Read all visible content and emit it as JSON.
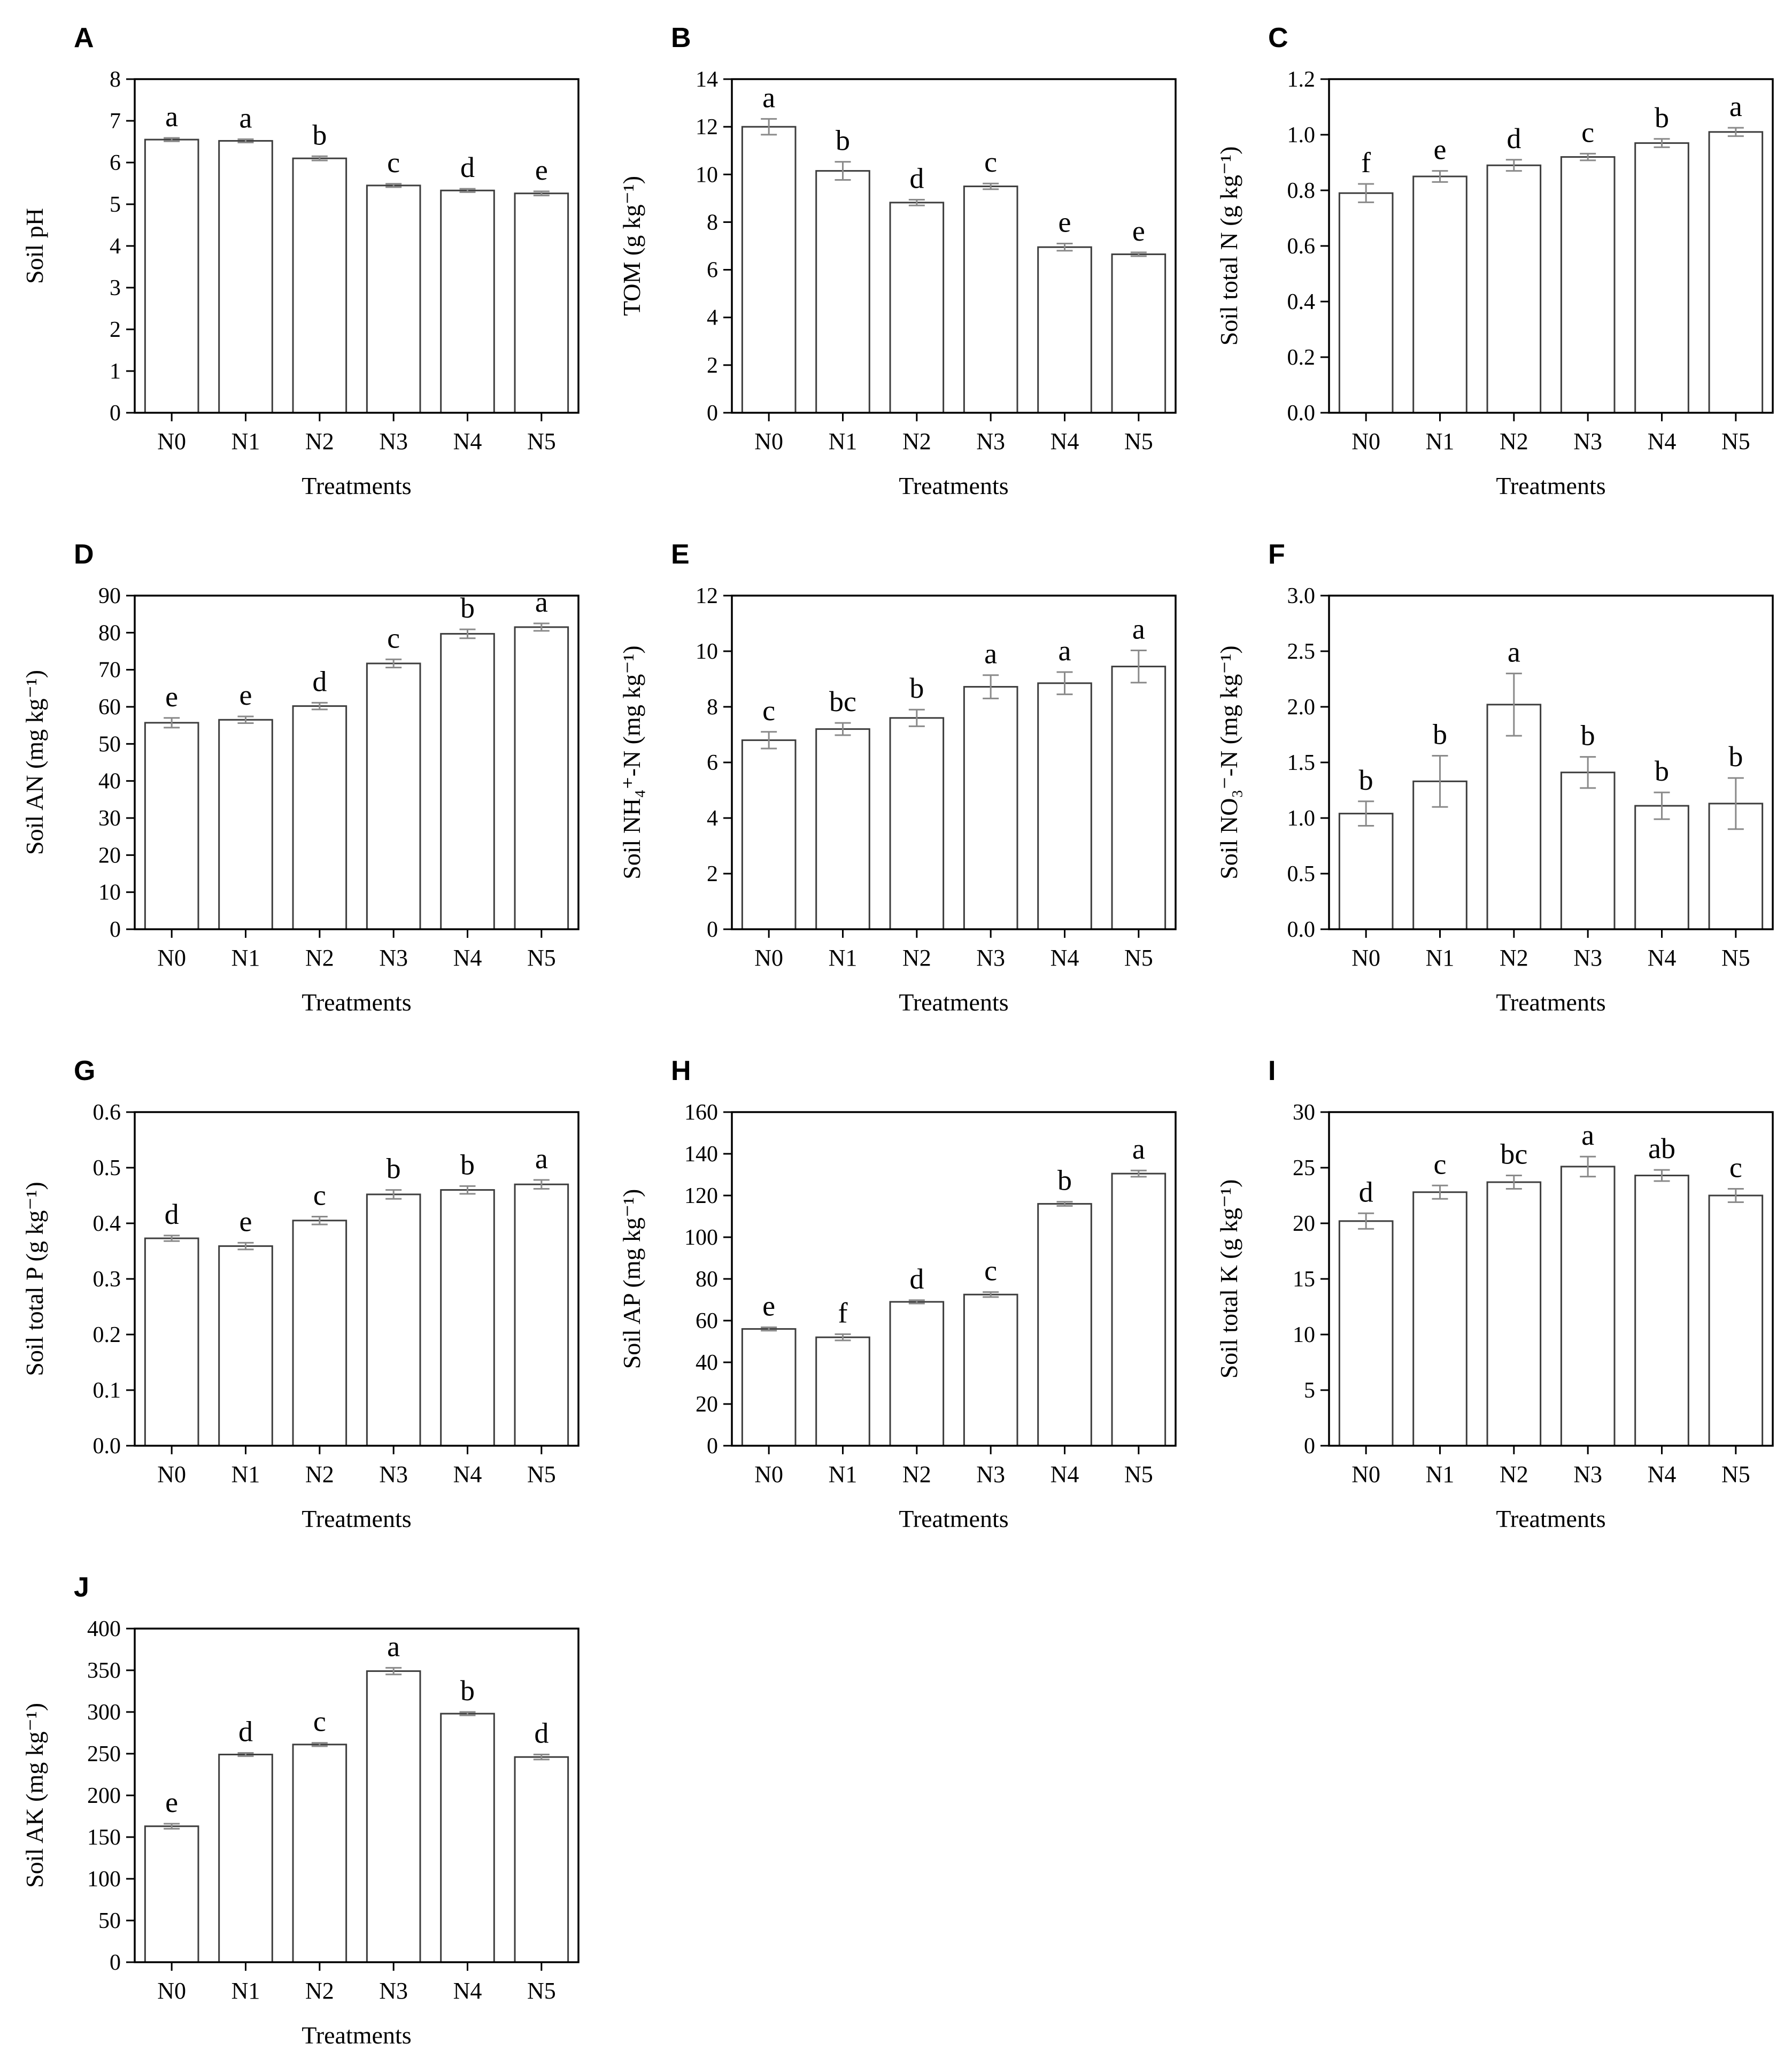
{
  "figure": {
    "panels_per_row": 3,
    "colors": {
      "background": "#ffffff",
      "bar_fill": "#ffffff",
      "bar_stroke": "#3d3d3d",
      "error_bar": "#8a8a8a",
      "axis": "#000000",
      "text": "#000000"
    }
  },
  "chart_data": [
    {
      "panel": "A",
      "type": "bar",
      "ylabel": "Soil pH",
      "xlabel": "Treatments",
      "categories": [
        "N0",
        "N1",
        "N2",
        "N3",
        "N4",
        "N5"
      ],
      "values": [
        6.55,
        6.52,
        6.1,
        5.45,
        5.33,
        5.26
      ],
      "errors": [
        0.04,
        0.04,
        0.05,
        0.04,
        0.04,
        0.05
      ],
      "sig_letters": [
        "a",
        "a",
        "b",
        "c",
        "d",
        "e"
      ],
      "ylim": [
        0,
        8
      ],
      "yticks": [
        "0",
        "1",
        "2",
        "3",
        "4",
        "5",
        "6",
        "7",
        "8"
      ],
      "legend": "none",
      "grid": "off"
    },
    {
      "panel": "B",
      "type": "bar",
      "ylabel": "TOM (g kg⁻¹)",
      "xlabel": "Treatments",
      "categories": [
        "N0",
        "N1",
        "N2",
        "N3",
        "N4",
        "N5"
      ],
      "values": [
        12.0,
        10.15,
        8.82,
        9.5,
        6.95,
        6.65
      ],
      "errors": [
        0.33,
        0.38,
        0.12,
        0.12,
        0.15,
        0.08
      ],
      "sig_letters": [
        "a",
        "b",
        "d",
        "c",
        "e",
        "e"
      ],
      "ylim": [
        0,
        14
      ],
      "yticks": [
        "0",
        "2",
        "4",
        "6",
        "8",
        "10",
        "12",
        "14"
      ],
      "legend": "none",
      "grid": "off"
    },
    {
      "panel": "C",
      "type": "bar",
      "ylabel": "Soil total N (g kg⁻¹)",
      "xlabel": "Treatments",
      "categories": [
        "N0",
        "N1",
        "N2",
        "N3",
        "N4",
        "N5"
      ],
      "values": [
        0.79,
        0.85,
        0.89,
        0.92,
        0.97,
        1.01
      ],
      "errors": [
        0.033,
        0.02,
        0.02,
        0.012,
        0.015,
        0.015
      ],
      "sig_letters": [
        "f",
        "e",
        "d",
        "c",
        "b",
        "a"
      ],
      "ylim": [
        0,
        1.2
      ],
      "yticks": [
        "0.0",
        "0.2",
        "0.4",
        "0.6",
        "0.8",
        "1.0",
        "1.2"
      ],
      "legend": "none",
      "grid": "off"
    },
    {
      "panel": "D",
      "type": "bar",
      "ylabel": "Soil AN (mg kg⁻¹)",
      "xlabel": "Treatments",
      "categories": [
        "N0",
        "N1",
        "N2",
        "N3",
        "N4",
        "N5"
      ],
      "values": [
        55.7,
        56.5,
        60.2,
        71.7,
        79.7,
        81.5
      ],
      "errors": [
        1.3,
        0.9,
        0.9,
        1.1,
        1.2,
        1.0
      ],
      "sig_letters": [
        "e",
        "e",
        "d",
        "c",
        "b",
        "a"
      ],
      "ylim": [
        0,
        90
      ],
      "yticks": [
        "0",
        "10",
        "20",
        "30",
        "40",
        "50",
        "60",
        "70",
        "80",
        "90"
      ],
      "legend": "none",
      "grid": "off"
    },
    {
      "panel": "E",
      "type": "bar",
      "ylabel": "Soil NH₄⁺-N (mg kg⁻¹)",
      "xlabel": "Treatments",
      "categories": [
        "N0",
        "N1",
        "N2",
        "N3",
        "N4",
        "N5"
      ],
      "values": [
        6.8,
        7.2,
        7.6,
        8.72,
        8.85,
        9.45
      ],
      "errors": [
        0.3,
        0.22,
        0.3,
        0.42,
        0.4,
        0.58
      ],
      "sig_letters": [
        "c",
        "bc",
        "b",
        "a",
        "a",
        "a"
      ],
      "ylim": [
        0,
        12
      ],
      "yticks": [
        "0",
        "2",
        "4",
        "6",
        "8",
        "10",
        "12"
      ],
      "legend": "none",
      "grid": "off"
    },
    {
      "panel": "F",
      "type": "bar",
      "ylabel": "Soil NO₃⁻-N (mg kg⁻¹)",
      "xlabel": "Treatments",
      "categories": [
        "N0",
        "N1",
        "N2",
        "N3",
        "N4",
        "N5"
      ],
      "values": [
        1.04,
        1.33,
        2.02,
        1.41,
        1.11,
        1.13
      ],
      "errors": [
        0.11,
        0.23,
        0.28,
        0.14,
        0.12,
        0.23
      ],
      "sig_letters": [
        "b",
        "b",
        "a",
        "b",
        "b",
        "b"
      ],
      "ylim": [
        0,
        3
      ],
      "yticks": [
        "0.0",
        "0.5",
        "1.0",
        "1.5",
        "2.0",
        "2.5",
        "3.0"
      ],
      "legend": "none",
      "grid": "off"
    },
    {
      "panel": "G",
      "type": "bar",
      "ylabel": "Soil total P (g kg⁻¹)",
      "xlabel": "Treatments",
      "categories": [
        "N0",
        "N1",
        "N2",
        "N3",
        "N4",
        "N5"
      ],
      "values": [
        0.373,
        0.359,
        0.405,
        0.452,
        0.46,
        0.47
      ],
      "errors": [
        0.005,
        0.006,
        0.007,
        0.008,
        0.007,
        0.008
      ],
      "sig_letters": [
        "d",
        "e",
        "c",
        "b",
        "b",
        "a"
      ],
      "ylim": [
        0,
        0.6
      ],
      "yticks": [
        "0.0",
        "0.1",
        "0.2",
        "0.3",
        "0.4",
        "0.5",
        "0.6"
      ],
      "legend": "none",
      "grid": "off"
    },
    {
      "panel": "H",
      "type": "bar",
      "ylabel": "Soil AP (mg kg⁻¹)",
      "xlabel": "Treatments",
      "categories": [
        "N0",
        "N1",
        "N2",
        "N3",
        "N4",
        "N5"
      ],
      "values": [
        56,
        52,
        69,
        72.5,
        116,
        130.5
      ],
      "errors": [
        0.8,
        1.5,
        0.8,
        1.2,
        1.0,
        1.5
      ],
      "sig_letters": [
        "e",
        "f",
        "d",
        "c",
        "b",
        "a"
      ],
      "ylim": [
        0,
        160
      ],
      "yticks": [
        "0",
        "20",
        "40",
        "60",
        "80",
        "100",
        "120",
        "140",
        "160"
      ],
      "legend": "none",
      "grid": "off"
    },
    {
      "panel": "I",
      "type": "bar",
      "ylabel": "Soil total K (g kg⁻¹)",
      "xlabel": "Treatments",
      "categories": [
        "N0",
        "N1",
        "N2",
        "N3",
        "N4",
        "N5"
      ],
      "values": [
        20.2,
        22.8,
        23.7,
        25.1,
        24.3,
        22.5
      ],
      "errors": [
        0.7,
        0.6,
        0.6,
        0.9,
        0.5,
        0.6
      ],
      "sig_letters": [
        "d",
        "c",
        "bc",
        "a",
        "ab",
        "c"
      ],
      "ylim": [
        0,
        30
      ],
      "yticks": [
        "0",
        "5",
        "10",
        "15",
        "20",
        "25",
        "30"
      ],
      "legend": "none",
      "grid": "off"
    },
    {
      "panel": "J",
      "type": "bar",
      "ylabel": "Soil AK (mg kg⁻¹)",
      "xlabel": "Treatments",
      "categories": [
        "N0",
        "N1",
        "N2",
        "N3",
        "N4",
        "N5"
      ],
      "values": [
        163,
        249,
        261,
        349,
        298,
        246
      ],
      "errors": [
        3,
        2,
        2,
        4,
        2,
        3
      ],
      "sig_letters": [
        "e",
        "d",
        "c",
        "a",
        "b",
        "d"
      ],
      "ylim": [
        0,
        400
      ],
      "yticks": [
        "0",
        "50",
        "100",
        "150",
        "200",
        "250",
        "300",
        "350",
        "400"
      ],
      "legend": "none",
      "grid": "off"
    }
  ]
}
